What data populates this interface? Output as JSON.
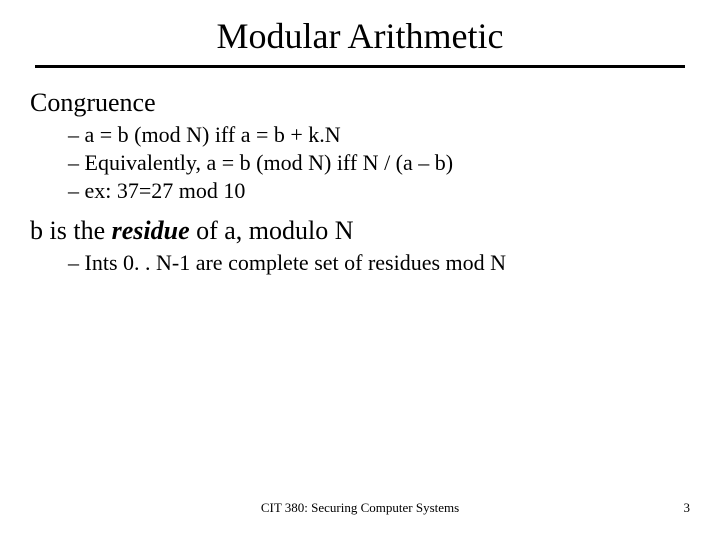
{
  "title": "Modular Arithmetic",
  "sections": [
    {
      "heading": "Congruence",
      "bullets": [
        "a = b (mod N) iff a = b + k.N",
        "Equivalently, a = b (mod N) iff N / (a – b)",
        "ex: 37=27 mod 10"
      ]
    },
    {
      "heading_parts": {
        "pre": "b is the ",
        "em": "residue",
        "post": " of a, modulo N"
      },
      "bullets": [
        "Ints 0. . N-1 are complete set of residues mod N"
      ]
    }
  ],
  "footer": {
    "center": "CIT 380: Securing Computer Systems",
    "page": "3"
  },
  "colors": {
    "background": "#ffffff",
    "text": "#000000"
  }
}
